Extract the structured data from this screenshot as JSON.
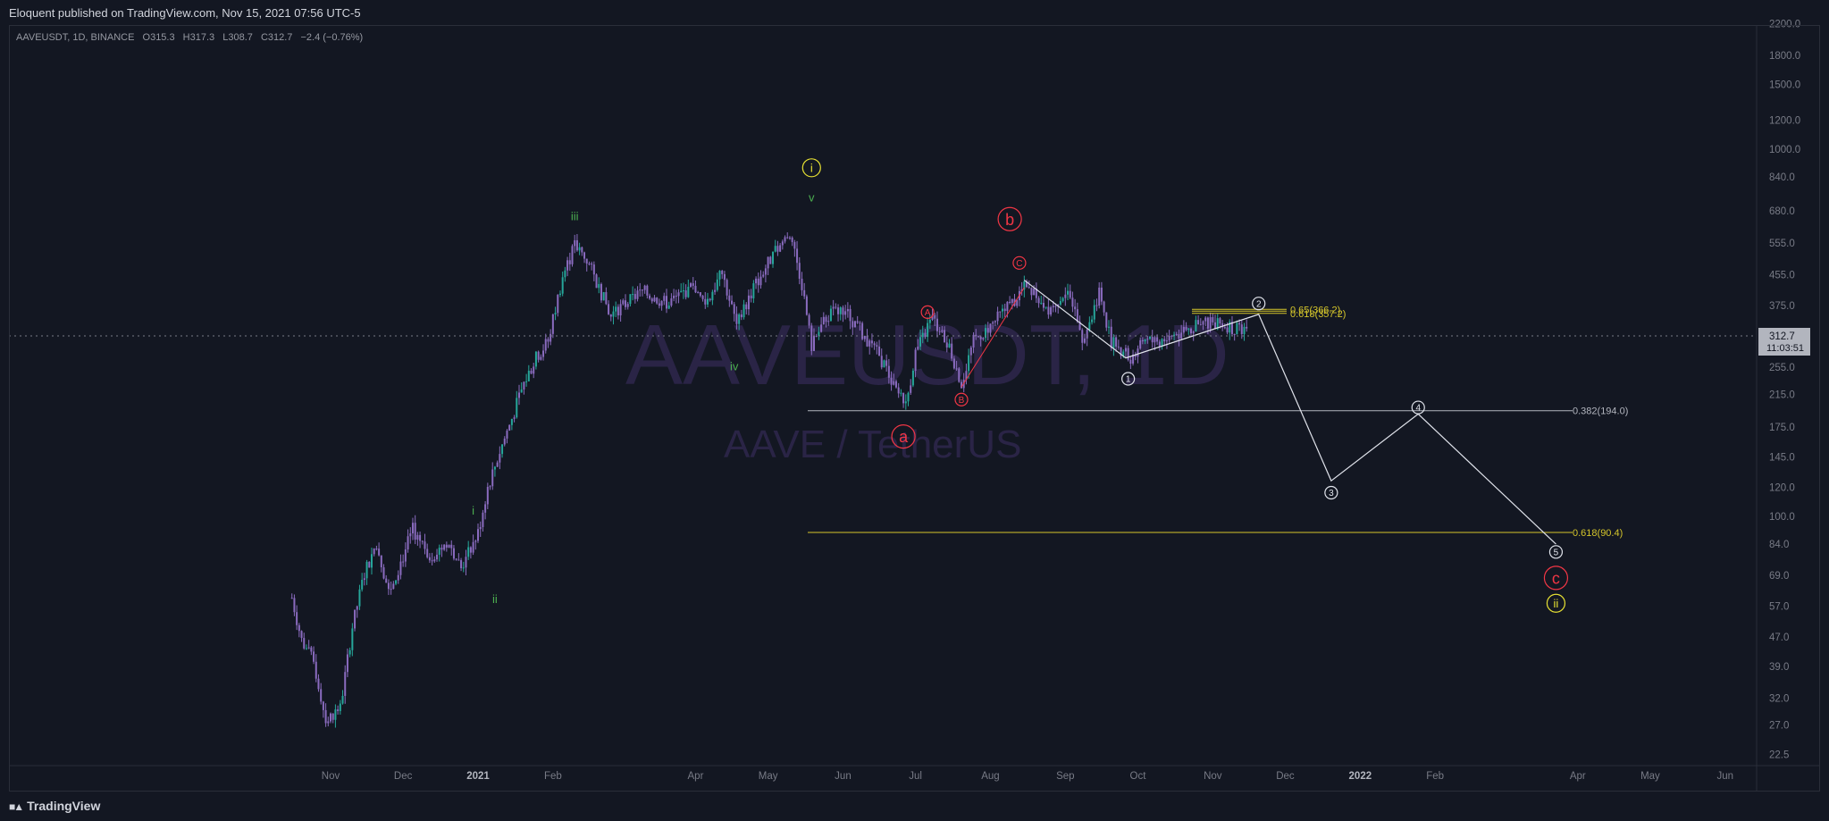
{
  "header": {
    "publisher_line": "Eloquent published on TradingView.com, Nov 15, 2021 07:56 UTC-5"
  },
  "legend": {
    "symbol_line": "AAVEUSDT, 1D, BINANCE",
    "open": "O315.3",
    "high": "H317.3",
    "low": "L308.7",
    "close": "C312.7",
    "change": "−2.4 (−0.76%)"
  },
  "watermark": {
    "symbol": "AAVEUSDT, 1D",
    "description": "AAVE / TetherUS"
  },
  "footer": {
    "brand": "TradingView"
  },
  "price_label": {
    "value": "312.7",
    "countdown": "11:03:51"
  },
  "colors": {
    "background": "#131722",
    "candle_up": "#26a69a",
    "candle_purple": "#8a6bbf",
    "wave_red": "#f23645",
    "wave_yellow": "#e8e233",
    "wave_green": "#4caf50",
    "fib_yellow": "#d4c52b"
  },
  "chart_data": {
    "type": "line",
    "scale": "log",
    "title": "AAVEUSDT, 1D, BINANCE",
    "y_ticks": [
      "2200.0",
      "1800.0",
      "1500.0",
      "1200.0",
      "1000.0",
      "840.0",
      "680.0",
      "555.0",
      "455.0",
      "375.0",
      "310.0",
      "255.0",
      "215.0",
      "175.0",
      "145.0",
      "120.0",
      "100.0",
      "84.0",
      "69.0",
      "57.0",
      "47.0",
      "39.0",
      "32.0",
      "27.0",
      "22.5"
    ],
    "x_ticks": [
      "Nov",
      "Dec",
      "2021",
      "Feb",
      "Apr",
      "May",
      "Jun",
      "Jul",
      "Aug",
      "Sep",
      "Oct",
      "Nov",
      "Dec",
      "2022",
      "Feb",
      "Apr",
      "May",
      "Jun"
    ],
    "bold_x_ticks": [
      "2021",
      "2022"
    ],
    "series": [
      {
        "name": "AAVEUSDT",
        "points": [
          [
            "2020-10-16",
            60
          ],
          [
            "2020-10-20",
            46
          ],
          [
            "2020-10-25",
            40
          ],
          [
            "2020-10-30",
            28
          ],
          [
            "2020-11-05",
            30
          ],
          [
            "2020-11-10",
            50
          ],
          [
            "2020-11-15",
            70
          ],
          [
            "2020-11-20",
            85
          ],
          [
            "2020-11-25",
            62
          ],
          [
            "2020-12-01",
            78
          ],
          [
            "2020-12-05",
            92
          ],
          [
            "2020-12-12",
            78
          ],
          [
            "2020-12-20",
            85
          ],
          [
            "2020-12-25",
            72
          ],
          [
            "2021-01-01",
            90
          ],
          [
            "2021-01-05",
            120
          ],
          [
            "2021-01-10",
            150
          ],
          [
            "2021-01-15",
            185
          ],
          [
            "2021-01-20",
            230
          ],
          [
            "2021-01-25",
            270
          ],
          [
            "2021-01-30",
            300
          ],
          [
            "2021-02-05",
            450
          ],
          [
            "2021-02-10",
            545
          ],
          [
            "2021-02-15",
            500
          ],
          [
            "2021-02-20",
            420
          ],
          [
            "2021-02-25",
            350
          ],
          [
            "2021-03-01",
            370
          ],
          [
            "2021-03-10",
            410
          ],
          [
            "2021-03-20",
            380
          ],
          [
            "2021-03-30",
            420
          ],
          [
            "2021-04-05",
            380
          ],
          [
            "2021-04-12",
            460
          ],
          [
            "2021-04-18",
            330
          ],
          [
            "2021-04-25",
            420
          ],
          [
            "2021-05-01",
            490
          ],
          [
            "2021-05-10",
            600
          ],
          [
            "2021-05-15",
            430
          ],
          [
            "2021-05-19",
            290
          ],
          [
            "2021-05-25",
            350
          ],
          [
            "2021-06-01",
            370
          ],
          [
            "2021-06-10",
            310
          ],
          [
            "2021-06-18",
            260
          ],
          [
            "2021-06-22",
            225
          ],
          [
            "2021-06-27",
            200
          ],
          [
            "2021-07-01",
            280
          ],
          [
            "2021-07-08",
            345
          ],
          [
            "2021-07-15",
            290
          ],
          [
            "2021-07-20",
            230
          ],
          [
            "2021-07-25",
            300
          ],
          [
            "2021-08-01",
            330
          ],
          [
            "2021-08-08",
            370
          ],
          [
            "2021-08-15",
            420
          ],
          [
            "2021-08-20",
            400
          ],
          [
            "2021-08-25",
            370
          ],
          [
            "2021-09-01",
            410
          ],
          [
            "2021-09-05",
            380
          ],
          [
            "2021-09-08",
            310
          ],
          [
            "2021-09-12",
            350
          ],
          [
            "2021-09-15",
            415
          ],
          [
            "2021-09-20",
            300
          ],
          [
            "2021-09-28",
            270
          ],
          [
            "2021-10-03",
            300
          ],
          [
            "2021-10-10",
            300
          ],
          [
            "2021-10-20",
            320
          ],
          [
            "2021-10-26",
            330
          ],
          [
            "2021-11-01",
            340
          ],
          [
            "2021-11-08",
            330
          ],
          [
            "2021-11-15",
            312.7
          ]
        ]
      }
    ],
    "annotations": {
      "fib_levels": [
        {
          "label": "0.382(194.0)",
          "value": 194.0
        },
        {
          "label": "0.618(90.4)",
          "value": 90.4
        },
        {
          "label": "0.618(357.2)",
          "value": 357.2
        },
        {
          "label": "0.65(366.2)",
          "value": 366.2
        }
      ],
      "wave_labels_green": [
        "i",
        "ii",
        "iii",
        "iv",
        "v"
      ],
      "wave_labels_yellow_circled": [
        "i",
        "ii"
      ],
      "wave_labels_red_circled": [
        "a",
        "b",
        "c",
        "A",
        "B",
        "C"
      ],
      "wave_labels_white_circled": [
        "1",
        "2",
        "3",
        "4",
        "5"
      ],
      "projection_path": [
        [
          "2021-08-15",
          440
        ],
        [
          "2021-09-26",
          270
        ],
        [
          "2021-11-20",
          355
        ],
        [
          "2021-12-20",
          125
        ],
        [
          "2022-01-25",
          190
        ],
        [
          "2022-03-23",
          84
        ]
      ]
    }
  }
}
